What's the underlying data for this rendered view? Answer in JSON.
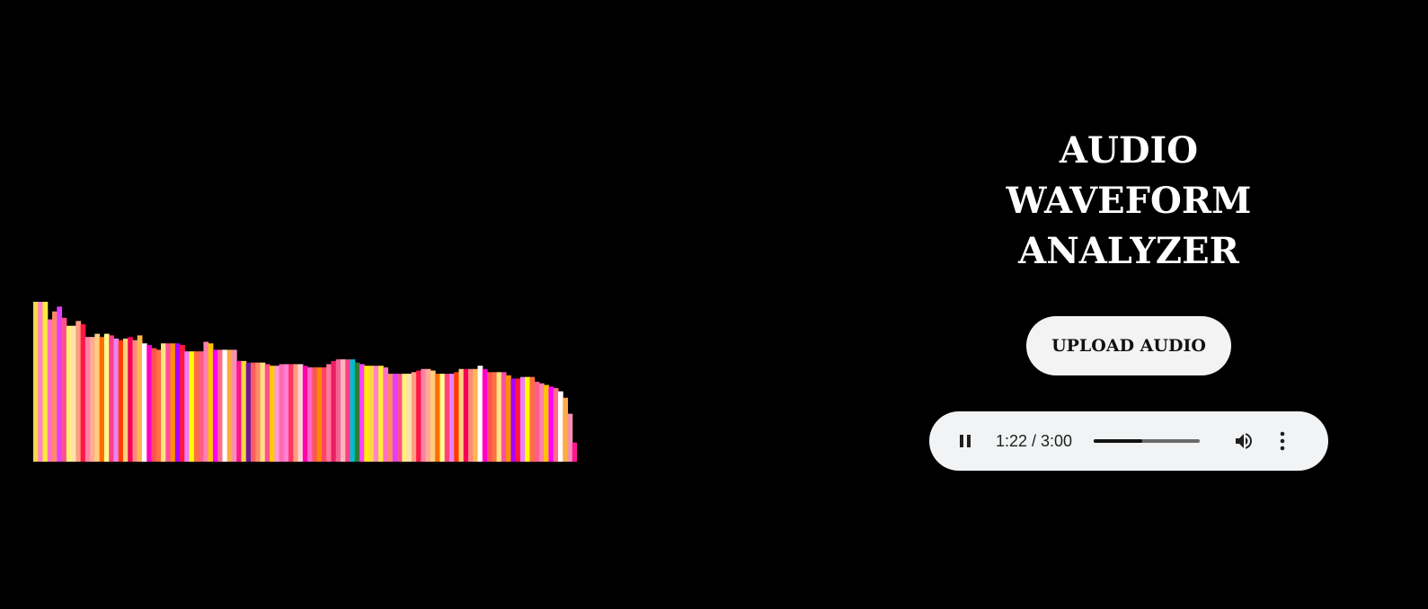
{
  "header": {
    "title": "AUDIO WAVEFORM ANALYZER"
  },
  "controls": {
    "upload_label": "UPLOAD AUDIO"
  },
  "player": {
    "time_display": "1:22 / 3:00",
    "progress_fraction": 0.46,
    "state": "playing",
    "icons": [
      "pause-icon",
      "volume-icon",
      "more-vert-icon"
    ]
  },
  "chart_data": {
    "type": "bar",
    "description_free": true,
    "ylim": [
      0,
      100
    ],
    "values": [
      100,
      100,
      100,
      89,
      94,
      97,
      90,
      85,
      85,
      88,
      86,
      78,
      78,
      80,
      78,
      80,
      79,
      77,
      76,
      77,
      78,
      76,
      79,
      74,
      73,
      71,
      70,
      74,
      74,
      74,
      74,
      73,
      69,
      69,
      69,
      69,
      75,
      74,
      70,
      70,
      70,
      70,
      70,
      63,
      63,
      62,
      62,
      62,
      62,
      61,
      60,
      60,
      61,
      61,
      61,
      61,
      61,
      60,
      59,
      59,
      59,
      59,
      61,
      63,
      64,
      64,
      64,
      64,
      62,
      61,
      60,
      60,
      60,
      60,
      59,
      55,
      55,
      55,
      55,
      55,
      56,
      57,
      58,
      58,
      57,
      55,
      55,
      55,
      55,
      56,
      58,
      58,
      58,
      58,
      60,
      58,
      56,
      56,
      56,
      56,
      54,
      52,
      52,
      53,
      53,
      53,
      50,
      49,
      48,
      47,
      46,
      44,
      40,
      30,
      12
    ],
    "colors": [
      "#ffd54f",
      "#ff85c2",
      "#ffeb3b",
      "#ff6ec7",
      "#ff8a65",
      "#e040fb",
      "#ff4f8a",
      "#fff176",
      "#ffe0b2",
      "#ff9e80",
      "#ff1744",
      "#ff80ab",
      "#ffab91",
      "#ffcc80",
      "#ff6d00",
      "#ffff8d",
      "#ff4081",
      "#ea80fc",
      "#ff3d00",
      "#ffd180",
      "#f50057",
      "#ff8a80",
      "#ffb74d",
      "#ffffff",
      "#ff00c8",
      "#ff5252",
      "#ff7043",
      "#ffe57f",
      "#ff4fa3",
      "#ff9100",
      "#aa00ff",
      "#ff1744",
      "#ea80fc",
      "#ffff00",
      "#ff6e40",
      "#ff5f87",
      "#ff80ab",
      "#ffc400",
      "#ff00ff",
      "#ff6d8a",
      "#ffffff",
      "#ffab40",
      "#f48fb1",
      "#ff1493",
      "#ffd740",
      "#6a1b9a",
      "#ff5c5c",
      "#ff8a65",
      "#ffe082",
      "#ff4d94",
      "#ffcc00",
      "#ff9bd1",
      "#ff69b4",
      "#ff80d0",
      "#ff3366",
      "#ffa07a",
      "#ffd1dc",
      "#ff00aa",
      "#ff66cc",
      "#ff5555",
      "#ff8800",
      "#ff4466",
      "#ff7799",
      "#e91e63",
      "#f06292",
      "#ffb6c1",
      "#ff4081",
      "#00bcd4",
      "#2e7d32",
      "#ff40ff",
      "#ffee00"
    ]
  }
}
